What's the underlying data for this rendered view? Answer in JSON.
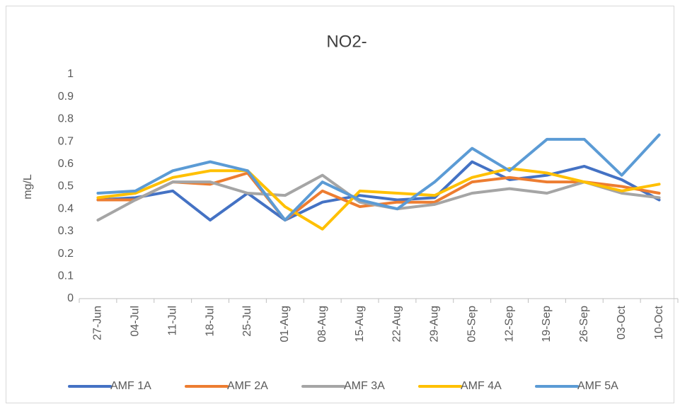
{
  "chart_data": {
    "type": "line",
    "title": "NO2-",
    "y_label": "mg/L",
    "categories": [
      "27-Jun",
      "04-Jul",
      "11-Jul",
      "18-Jul",
      "25-Jul",
      "01-Aug",
      "08-Aug",
      "15-Aug",
      "22-Aug",
      "29-Aug",
      "05-Sep",
      "12-Sep",
      "19-Sep",
      "26-Sep",
      "03-Oct",
      "10-Oct"
    ],
    "series": [
      {
        "name": "AMF 1A",
        "color": "#4472c4",
        "values": [
          0.44,
          0.45,
          0.48,
          0.35,
          0.47,
          0.35,
          0.43,
          0.46,
          0.44,
          0.45,
          0.61,
          0.53,
          0.55,
          0.59,
          0.53,
          0.44
        ]
      },
      {
        "name": "AMF 2A",
        "color": "#ed7d31",
        "values": [
          0.44,
          0.44,
          0.52,
          0.51,
          0.56,
          0.35,
          0.48,
          0.41,
          0.43,
          0.43,
          0.52,
          0.54,
          0.52,
          0.52,
          0.5,
          0.47
        ]
      },
      {
        "name": "AMF 3A",
        "color": "#a5a5a5",
        "values": [
          0.35,
          0.44,
          0.52,
          0.52,
          0.47,
          0.46,
          0.55,
          0.43,
          0.4,
          0.42,
          0.47,
          0.49,
          0.47,
          0.52,
          0.47,
          0.45
        ]
      },
      {
        "name": "AMF 4A",
        "color": "#ffc000",
        "values": [
          0.45,
          0.47,
          0.54,
          0.57,
          0.57,
          0.41,
          0.31,
          0.48,
          0.47,
          0.46,
          0.54,
          0.58,
          0.56,
          0.52,
          0.48,
          0.51
        ]
      },
      {
        "name": "AMF 5A",
        "color": "#5b9bd5",
        "values": [
          0.47,
          0.48,
          0.57,
          0.61,
          0.57,
          0.35,
          0.52,
          0.44,
          0.4,
          0.52,
          0.67,
          0.57,
          0.71,
          0.71,
          0.55,
          0.73
        ]
      }
    ],
    "ylim": [
      0,
      1
    ],
    "yticks": [
      0,
      0.1,
      0.2,
      0.3,
      0.4,
      0.5,
      0.6,
      0.7,
      0.8,
      0.9,
      1
    ],
    "grid": false,
    "legend": "bottom"
  }
}
